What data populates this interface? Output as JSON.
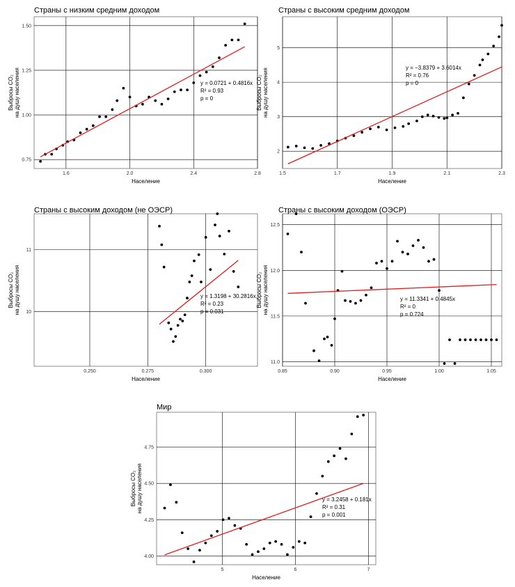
{
  "chart_data": [
    {
      "type": "scatter",
      "title": "Страны с низким средним доходом",
      "xlabel": "Население",
      "ylabel": [
        "Выбросы CO₂",
        "на душу населения"
      ],
      "xlim": [
        1.4,
        2.8
      ],
      "ylim": [
        0.7,
        1.55
      ],
      "xticks": [
        1.6,
        2.0,
        2.4,
        2.8
      ],
      "xtick_labels": [
        "1.6",
        "2.0",
        "2.4",
        "2.8"
      ],
      "yticks": [
        0.75,
        1.0,
        1.25,
        1.5
      ],
      "ytick_labels": [
        "0.75",
        "1.00",
        "1.25",
        "1.50"
      ],
      "grid": true,
      "x": [
        1.44,
        1.47,
        1.51,
        1.54,
        1.58,
        1.61,
        1.65,
        1.69,
        1.73,
        1.77,
        1.81,
        1.85,
        1.89,
        1.92,
        1.96,
        2.0,
        2.04,
        2.08,
        2.12,
        2.16,
        2.2,
        2.24,
        2.28,
        2.32,
        2.36,
        2.4,
        2.44,
        2.48,
        2.52,
        2.56,
        2.6,
        2.64,
        2.68,
        2.72
      ],
      "y": [
        0.74,
        0.78,
        0.78,
        0.81,
        0.83,
        0.85,
        0.86,
        0.9,
        0.92,
        0.94,
        0.99,
        0.99,
        1.03,
        1.08,
        1.15,
        1.1,
        1.05,
        1.06,
        1.1,
        1.08,
        1.06,
        1.09,
        1.13,
        1.14,
        1.14,
        1.18,
        1.22,
        1.24,
        1.27,
        1.32,
        1.39,
        1.42,
        1.42,
        1.51
      ],
      "fit": {
        "intercept": 0.0721,
        "slope": 0.4816
      },
      "annotation": [
        "y = 0.0721 + 0.4816x",
        "R² = 0.93",
        "p = 0"
      ]
    },
    {
      "type": "scatter",
      "title": "Страны с высоким средним доходом",
      "xlabel": "Население",
      "ylabel": [
        "Выбросы CO₂",
        "на душу населения"
      ],
      "xlim": [
        1.5,
        2.3
      ],
      "ylim": [
        1.5,
        5.9
      ],
      "xticks": [
        1.5,
        1.7,
        1.9,
        2.1,
        2.3
      ],
      "xtick_labels": [
        "1.5",
        "1.7",
        "1.9",
        "2.1",
        "2.3"
      ],
      "yticks": [
        2,
        3,
        4,
        5
      ],
      "ytick_labels": [
        "2",
        "3",
        "4",
        "5"
      ],
      "grid": true,
      "x": [
        1.52,
        1.55,
        1.58,
        1.61,
        1.64,
        1.67,
        1.7,
        1.73,
        1.76,
        1.79,
        1.82,
        1.85,
        1.88,
        1.91,
        1.94,
        1.96,
        1.99,
        2.01,
        2.03,
        2.05,
        2.07,
        2.09,
        2.1,
        2.12,
        2.14,
        2.16,
        2.18,
        2.2,
        2.22,
        2.23,
        2.25,
        2.27,
        2.29,
        2.3
      ],
      "y": [
        2.12,
        2.15,
        2.1,
        2.08,
        2.17,
        2.22,
        2.3,
        2.38,
        2.45,
        2.55,
        2.65,
        2.7,
        2.62,
        2.68,
        2.72,
        2.8,
        2.88,
        3.0,
        3.05,
        3.02,
        2.98,
        2.95,
        2.97,
        3.05,
        3.1,
        3.55,
        3.95,
        4.2,
        4.5,
        4.65,
        4.82,
        5.05,
        5.32,
        5.65
      ],
      "fit": {
        "intercept": -3.8379,
        "slope": 3.6014
      },
      "annotation": [
        "y = −3.8379 + 3.6014x",
        "R² = 0.76",
        "p = 0"
      ]
    },
    {
      "type": "scatter",
      "title": "Страны с высоким доходом (не ОЭСР)",
      "xlabel": "Население",
      "ylabel": [
        "Выбросы CO₂",
        "на душу населения"
      ],
      "xlim": [
        0.226,
        0.3223
      ],
      "ylim": [
        9.12,
        11.58
      ],
      "xticks": [
        0.25,
        0.275,
        0.3
      ],
      "xtick_labels": [
        "0.250",
        "0.275",
        "0.300"
      ],
      "yticks": [
        10,
        11
      ],
      "ytick_labels": [
        "10",
        "11"
      ],
      "grid": true,
      "x": [
        0.28,
        0.281,
        0.282,
        0.284,
        0.285,
        0.286,
        0.287,
        0.288,
        0.289,
        0.29,
        0.291,
        0.292,
        0.293,
        0.294,
        0.295,
        0.297,
        0.298,
        0.3,
        0.302,
        0.304,
        0.305,
        0.306,
        0.308,
        0.31,
        0.312,
        0.314
      ],
      "y": [
        11.38,
        11.08,
        10.72,
        9.82,
        9.72,
        9.52,
        9.6,
        9.78,
        9.88,
        9.85,
        9.95,
        10.22,
        10.48,
        10.58,
        10.82,
        10.92,
        10.48,
        11.2,
        10.68,
        11.4,
        11.58,
        11.22,
        10.93,
        11.3,
        10.65,
        10.4
      ],
      "fit": {
        "intercept": 1.3198,
        "slope": 30.2816
      },
      "annotation": [
        "y = 1.3198 + 30.2816x",
        "R² = 0.23",
        "p = 0.031"
      ]
    },
    {
      "type": "scatter",
      "title": "Страны с высоким доходом (ОЭСР)",
      "xlabel": "Население",
      "ylabel": [
        "Выбросы CO₂",
        "на душу населения"
      ],
      "xlim": [
        0.85,
        1.06
      ],
      "ylim": [
        10.95,
        12.62
      ],
      "xticks": [
        0.85,
        0.9,
        0.95,
        1.0,
        1.05
      ],
      "xtick_labels": [
        "0.85",
        "0.90",
        "0.95",
        "1.00",
        "1.05"
      ],
      "yticks": [
        11.0,
        11.5,
        12.0,
        12.5
      ],
      "ytick_labels": [
        "11.0",
        "11.5",
        "12.0",
        "12.5"
      ],
      "grid": true,
      "x": [
        0.855,
        0.863,
        0.868,
        0.872,
        0.88,
        0.885,
        0.89,
        0.893,
        0.897,
        0.9,
        0.903,
        0.907,
        0.91,
        0.915,
        0.92,
        0.925,
        0.93,
        0.935,
        0.94,
        0.945,
        0.95,
        0.955,
        0.96,
        0.965,
        0.97,
        0.975,
        0.98,
        0.985,
        0.99,
        0.995,
        1.0,
        1.005,
        1.01,
        1.015,
        1.02,
        1.025,
        1.03,
        1.035,
        1.04,
        1.045,
        1.05,
        1.055
      ],
      "y": [
        12.4,
        12.62,
        12.2,
        11.64,
        11.12,
        11.01,
        11.25,
        11.27,
        11.18,
        11.47,
        11.78,
        11.99,
        11.67,
        11.66,
        11.64,
        11.67,
        11.73,
        11.81,
        12.08,
        12.1,
        12.02,
        12.1,
        12.32,
        12.2,
        12.18,
        12.27,
        12.33,
        12.25,
        12.1,
        12.12,
        11.78,
        10.98,
        11.24,
        10.98,
        11.24,
        11.24,
        11.24,
        11.24,
        11.24,
        11.24,
        11.24,
        11.24
      ],
      "fit": {
        "intercept": 11.3341,
        "slope": 0.4845
      },
      "annotation": [
        "y = 11.3341 + 0.4845x",
        "R² = 0",
        "p = 0.724"
      ]
    },
    {
      "type": "scatter",
      "title": "Мир",
      "xlabel": "Население",
      "ylabel": [
        "Выбросы CO₂",
        "на душу населения"
      ],
      "xlim": [
        4.1,
        7.1
      ],
      "ylim": [
        3.94,
        4.99
      ],
      "xticks": [
        5,
        6,
        7
      ],
      "xtick_labels": [
        "5",
        "6",
        "7"
      ],
      "yticks": [
        4.0,
        4.25,
        4.5,
        4.75
      ],
      "ytick_labels": [
        "4.00",
        "4.25",
        "4.50",
        "4.75"
      ],
      "grid": true,
      "x": [
        4.21,
        4.29,
        4.37,
        4.45,
        4.53,
        4.61,
        4.69,
        4.77,
        4.85,
        4.93,
        5.01,
        5.09,
        5.17,
        5.25,
        5.33,
        5.41,
        5.49,
        5.57,
        5.65,
        5.73,
        5.81,
        5.89,
        5.97,
        6.05,
        6.13,
        6.21,
        6.29,
        6.37,
        6.45,
        6.53,
        6.61,
        6.69,
        6.77,
        6.85,
        6.93
      ],
      "y": [
        4.33,
        4.49,
        4.37,
        4.16,
        4.05,
        3.96,
        4.04,
        4.09,
        4.14,
        4.17,
        4.25,
        4.26,
        4.21,
        4.19,
        4.08,
        4.01,
        4.03,
        4.05,
        4.09,
        4.1,
        4.08,
        4.01,
        4.06,
        4.1,
        4.09,
        4.27,
        4.43,
        4.55,
        4.65,
        4.69,
        4.74,
        4.67,
        4.84,
        4.96,
        4.97
      ],
      "fit": {
        "intercept": 3.2458,
        "slope": 0.181
      },
      "annotation": [
        "y = 3.2458 + 0.181x",
        "R² = 0.31",
        "p = 0.001"
      ]
    }
  ]
}
